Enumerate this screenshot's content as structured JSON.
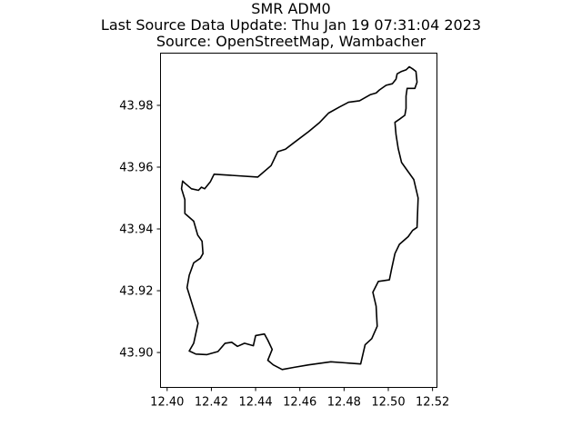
{
  "titles": {
    "line1": "SMR ADM0",
    "line2": "Last Source Data Update: Thu Jan 19 07:31:04 2023",
    "line3": "Source: OpenStreetMap, Wambacher"
  },
  "map": {
    "outline_color": "#000000",
    "background_color": "#ffffff",
    "xlim": [
      12.397,
      12.522
    ],
    "ylim": [
      43.8887,
      43.9969
    ],
    "x_ticks": [
      12.4,
      12.42,
      12.44,
      12.46,
      12.48,
      12.5,
      12.52
    ],
    "x_tick_labels": [
      "12.40",
      "12.42",
      "12.44",
      "12.46",
      "12.48",
      "12.50",
      "12.52"
    ],
    "y_ticks": [
      43.9,
      43.92,
      43.94,
      43.96,
      43.98
    ],
    "y_tick_labels": [
      "43.90",
      "43.92",
      "43.94",
      "43.96",
      "43.98"
    ],
    "boundary": [
      [
        12.5095,
        43.9925
      ],
      [
        12.508,
        43.9915
      ],
      [
        12.506,
        43.991
      ],
      [
        12.504,
        43.9902
      ],
      [
        12.5035,
        43.9885
      ],
      [
        12.5018,
        43.987
      ],
      [
        12.499,
        43.9865
      ],
      [
        12.496,
        43.985
      ],
      [
        12.4945,
        43.984
      ],
      [
        12.492,
        43.9835
      ],
      [
        12.487,
        43.9815
      ],
      [
        12.482,
        43.981
      ],
      [
        12.478,
        43.9795
      ],
      [
        12.473,
        43.9775
      ],
      [
        12.469,
        43.9745
      ],
      [
        12.464,
        43.9715
      ],
      [
        12.4575,
        43.968
      ],
      [
        12.4535,
        43.9658
      ],
      [
        12.45,
        43.965
      ],
      [
        12.447,
        43.9605
      ],
      [
        12.441,
        43.9568
      ],
      [
        12.4212,
        43.9577
      ],
      [
        12.4195,
        43.9552
      ],
      [
        12.417,
        43.953
      ],
      [
        12.4155,
        43.9535
      ],
      [
        12.4142,
        43.9525
      ],
      [
        12.411,
        43.953
      ],
      [
        12.408,
        43.9548
      ],
      [
        12.407,
        43.9555
      ],
      [
        12.4065,
        43.953
      ],
      [
        12.408,
        43.9495
      ],
      [
        12.408,
        43.945
      ],
      [
        12.412,
        43.9425
      ],
      [
        12.4138,
        43.938
      ],
      [
        12.4158,
        43.936
      ],
      [
        12.4162,
        43.932
      ],
      [
        12.415,
        43.9305
      ],
      [
        12.412,
        43.929
      ],
      [
        12.41,
        43.925
      ],
      [
        12.409,
        43.921
      ],
      [
        12.414,
        43.9095
      ],
      [
        12.412,
        43.903
      ],
      [
        12.41,
        43.9005
      ],
      [
        12.413,
        43.8995
      ],
      [
        12.418,
        43.8993
      ],
      [
        12.423,
        43.9003
      ],
      [
        12.4262,
        43.903
      ],
      [
        12.4292,
        43.9033
      ],
      [
        12.4318,
        43.902
      ],
      [
        12.435,
        43.903
      ],
      [
        12.439,
        43.9022
      ],
      [
        12.44,
        43.9055
      ],
      [
        12.444,
        43.906
      ],
      [
        12.4455,
        43.904
      ],
      [
        12.4475,
        43.901
      ],
      [
        12.4455,
        43.8975
      ],
      [
        12.448,
        43.896
      ],
      [
        12.452,
        43.8945
      ],
      [
        12.4575,
        43.8952
      ],
      [
        12.464,
        43.896
      ],
      [
        12.474,
        43.897
      ],
      [
        12.4875,
        43.8963
      ],
      [
        12.4895,
        43.9025
      ],
      [
        12.4925,
        43.9045
      ],
      [
        12.495,
        43.9085
      ],
      [
        12.4945,
        43.915
      ],
      [
        12.493,
        43.9195
      ],
      [
        12.4955,
        43.923
      ],
      [
        12.5005,
        43.9235
      ],
      [
        12.5015,
        43.927
      ],
      [
        12.503,
        43.932
      ],
      [
        12.505,
        43.935
      ],
      [
        12.509,
        43.9375
      ],
      [
        12.511,
        43.9395
      ],
      [
        12.513,
        43.9405
      ],
      [
        12.5135,
        43.95
      ],
      [
        12.5115,
        43.956
      ],
      [
        12.506,
        43.9615
      ],
      [
        12.5045,
        43.966
      ],
      [
        12.5035,
        43.9705
      ],
      [
        12.503,
        43.9745
      ],
      [
        12.505,
        43.9755
      ],
      [
        12.5075,
        43.9768
      ],
      [
        12.508,
        43.979
      ],
      [
        12.508,
        43.983
      ],
      [
        12.5085,
        43.9855
      ],
      [
        12.512,
        43.9855
      ],
      [
        12.513,
        43.9875
      ],
      [
        12.5125,
        43.991
      ],
      [
        12.511,
        43.9918
      ],
      [
        12.5095,
        43.9925
      ]
    ]
  }
}
